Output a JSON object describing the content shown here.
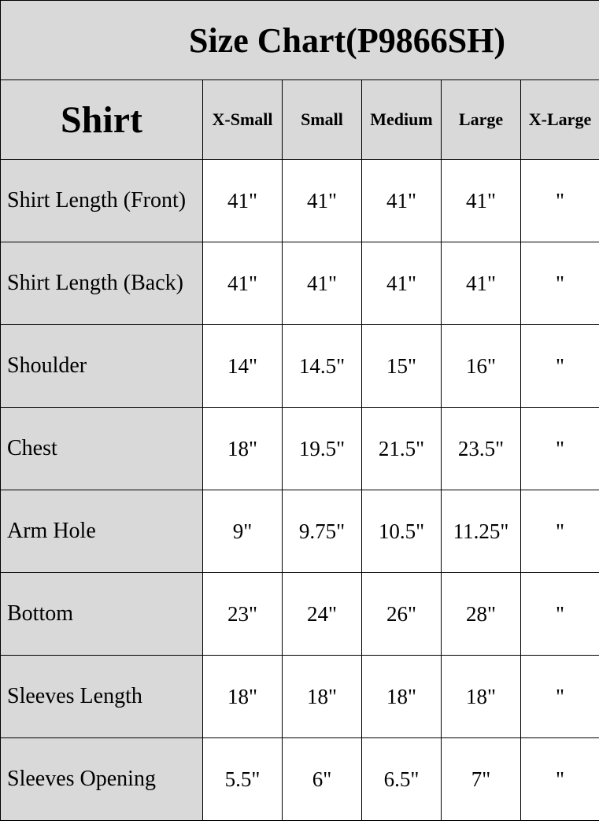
{
  "title": "Size Chart(P9866SH)",
  "header": {
    "section": "Shirt",
    "sizes": [
      "X-Small",
      "Small",
      "Medium",
      "Large",
      "X-Large"
    ]
  },
  "rows": [
    {
      "label": "Shirt Length (Front)",
      "values": [
        "41\"",
        "41\"",
        "41\"",
        "41\"",
        "\""
      ]
    },
    {
      "label": "Shirt Length (Back)",
      "values": [
        "41\"",
        "41\"",
        "41\"",
        "41\"",
        "\""
      ]
    },
    {
      "label": "Shoulder",
      "values": [
        "14\"",
        "14.5\"",
        "15\"",
        "16\"",
        "\""
      ]
    },
    {
      "label": "Chest",
      "values": [
        "18\"",
        "19.5\"",
        "21.5\"",
        "23.5\"",
        "\""
      ]
    },
    {
      "label": "Arm Hole",
      "values": [
        "9\"",
        "9.75\"",
        "10.5\"",
        "11.25\"",
        "\""
      ]
    },
    {
      "label": "Bottom",
      "values": [
        "23\"",
        "24\"",
        "26\"",
        "28\"",
        "\""
      ]
    },
    {
      "label": "Sleeves Length",
      "values": [
        "18\"",
        "18\"",
        "18\"",
        "18\"",
        "\""
      ]
    },
    {
      "label": "Sleeves Opening",
      "values": [
        "5.5\"",
        "6\"",
        "6.5\"",
        "7\"",
        "\""
      ]
    }
  ]
}
